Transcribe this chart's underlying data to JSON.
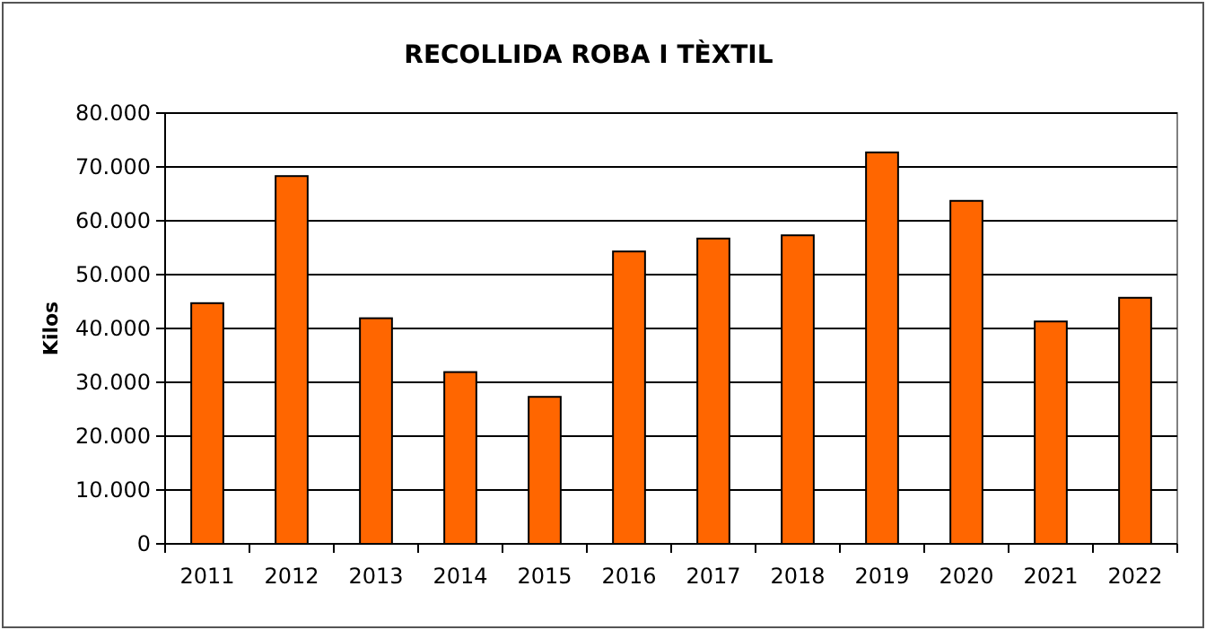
{
  "chart_data": {
    "type": "bar",
    "title": "RECOLLIDA ROBA I TÈXTIL",
    "ylabel": "Kilos",
    "categories": [
      "2011",
      "2012",
      "2013",
      "2014",
      "2015",
      "2016",
      "2017",
      "2018",
      "2019",
      "2020",
      "2021",
      "2022"
    ],
    "values": [
      44700,
      68300,
      41900,
      31900,
      27300,
      54300,
      56700,
      57300,
      72700,
      63700,
      41300,
      45700
    ],
    "color": "#ff6600",
    "ylim": [
      0,
      80000
    ],
    "yticks": [
      {
        "value": 0,
        "label": "0"
      },
      {
        "value": 10000,
        "label": "10.000"
      },
      {
        "value": 20000,
        "label": "20.000"
      },
      {
        "value": 30000,
        "label": "30.000"
      },
      {
        "value": 40000,
        "label": "40.000"
      },
      {
        "value": 50000,
        "label": "50.000"
      },
      {
        "value": 60000,
        "label": "60.000"
      },
      {
        "value": 70000,
        "label": "70.000"
      },
      {
        "value": 80000,
        "label": "80.000"
      }
    ],
    "grid": "y"
  }
}
